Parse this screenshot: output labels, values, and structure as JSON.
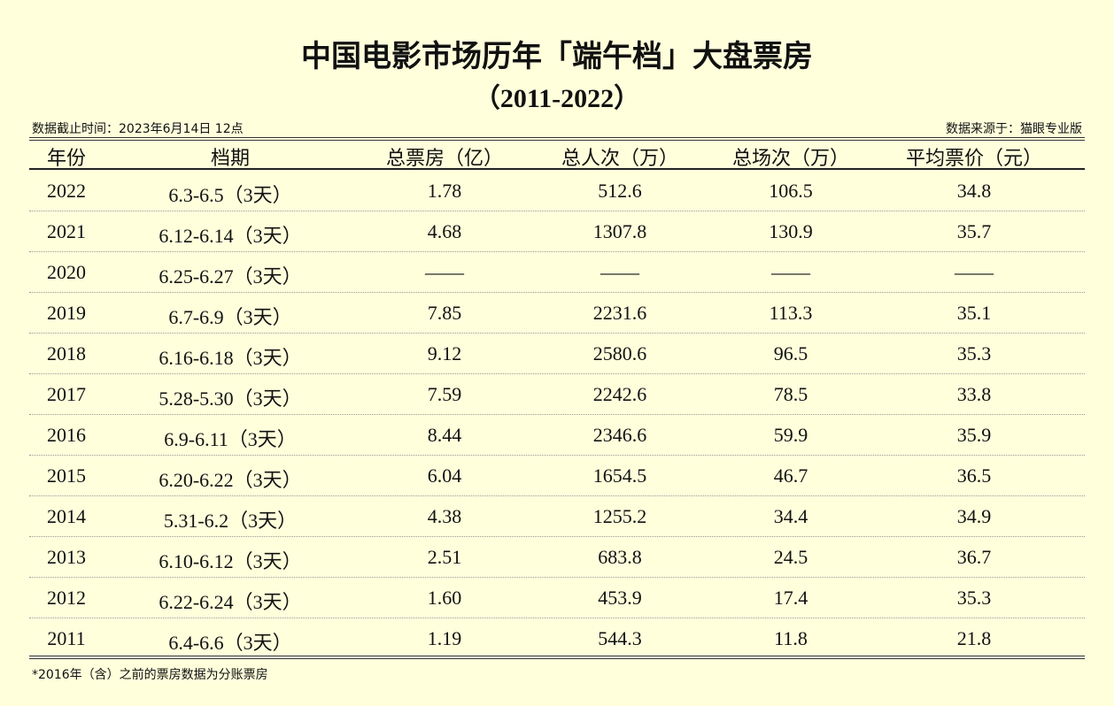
{
  "header": {
    "title": "中国电影市场历年「端午档」大盘票房",
    "subtitle": "（2011-2022）",
    "cutoff": "数据截止时间：2023年6月14日 12点",
    "source": "数据来源于：猫眼专业版"
  },
  "table": {
    "columns": [
      "年份",
      "档期",
      "总票房（亿）",
      "总人次（万）",
      "总场次（万）",
      "平均票价（元）"
    ],
    "rows": [
      [
        "2022",
        "6.3-6.5（3天）",
        "1.78",
        "512.6",
        "106.5",
        "34.8"
      ],
      [
        "2021",
        "6.12-6.14（3天）",
        "4.68",
        "1307.8",
        "130.9",
        "35.7"
      ],
      [
        "2020",
        "6.25-6.27（3天）",
        "——",
        "——",
        "——",
        "——"
      ],
      [
        "2019",
        "6.7-6.9（3天）",
        "7.85",
        "2231.6",
        "113.3",
        "35.1"
      ],
      [
        "2018",
        "6.16-6.18（3天）",
        "9.12",
        "2580.6",
        "96.5",
        "35.3"
      ],
      [
        "2017",
        "5.28-5.30（3天）",
        "7.59",
        "2242.6",
        "78.5",
        "33.8"
      ],
      [
        "2016",
        "6.9-6.11（3天）",
        "8.44",
        "2346.6",
        "59.9",
        "35.9"
      ],
      [
        "2015",
        "6.20-6.22（3天）",
        "6.04",
        "1654.5",
        "46.7",
        "36.5"
      ],
      [
        "2014",
        "5.31-6.2（3天）",
        "4.38",
        "1255.2",
        "34.4",
        "34.9"
      ],
      [
        "2013",
        "6.10-6.12（3天）",
        "2.51",
        "683.8",
        "24.5",
        "36.7"
      ],
      [
        "2012",
        "6.22-6.24（3天）",
        "1.60",
        "453.9",
        "17.4",
        "35.3"
      ],
      [
        "2011",
        "6.4-6.6（3天）",
        "1.19",
        "544.3",
        "11.8",
        "21.8"
      ]
    ]
  },
  "footnote": "*2016年（含）之前的票房数据为分账票房"
}
